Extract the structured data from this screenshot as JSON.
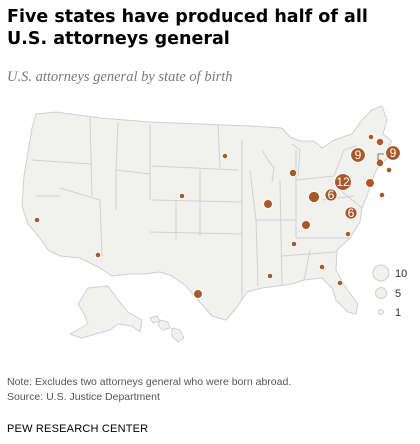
{
  "title": "Five states have produced half of all U.S. attorneys general",
  "subtitle": "U.S. attorneys general by state of birth",
  "chart_data": {
    "type": "proportional-symbol-map",
    "points": [
      {
        "state": "New York",
        "value": 9
      },
      {
        "state": "Massachusetts",
        "value": 9
      },
      {
        "state": "Pennsylvania",
        "value": 12
      },
      {
        "state": "Virginia",
        "value": 6
      },
      {
        "state": "North Carolina",
        "value": 6
      },
      {
        "state": "Vermont",
        "value": 1
      },
      {
        "state": "New Hampshire",
        "value": 2
      },
      {
        "state": "Connecticut",
        "value": 2
      },
      {
        "state": "Rhode Island",
        "value": 1
      },
      {
        "state": "Maryland",
        "value": 3
      },
      {
        "state": "District of Columbia",
        "value": 1
      },
      {
        "state": "Ohio",
        "value": 5
      },
      {
        "state": "Kentucky",
        "value": 3
      },
      {
        "state": "Michigan",
        "value": 2
      },
      {
        "state": "Illinois",
        "value": 3
      },
      {
        "state": "Minnesota",
        "value": 1
      },
      {
        "state": "Nebraska",
        "value": 1
      },
      {
        "state": "Tennessee",
        "value": 1
      },
      {
        "state": "South Carolina",
        "value": 1
      },
      {
        "state": "Georgia",
        "value": 1
      },
      {
        "state": "Alabama",
        "value": 1
      },
      {
        "state": "Texas",
        "value": 3
      },
      {
        "state": "Arizona",
        "value": 1
      },
      {
        "state": "California",
        "value": 1
      },
      {
        "state": "Florida",
        "value": 1
      }
    ],
    "legend": {
      "position": "right",
      "items": [
        10,
        5,
        1
      ]
    },
    "colors": {
      "bubble": "#a9582a",
      "land": "#f1f1ef",
      "border": "#cfcfcf"
    }
  },
  "note": "Note: Excludes two attorneys general who were born abroad.",
  "source": "Source: U.S. Justice Department",
  "brand": "PEW RESEARCH CENTER"
}
